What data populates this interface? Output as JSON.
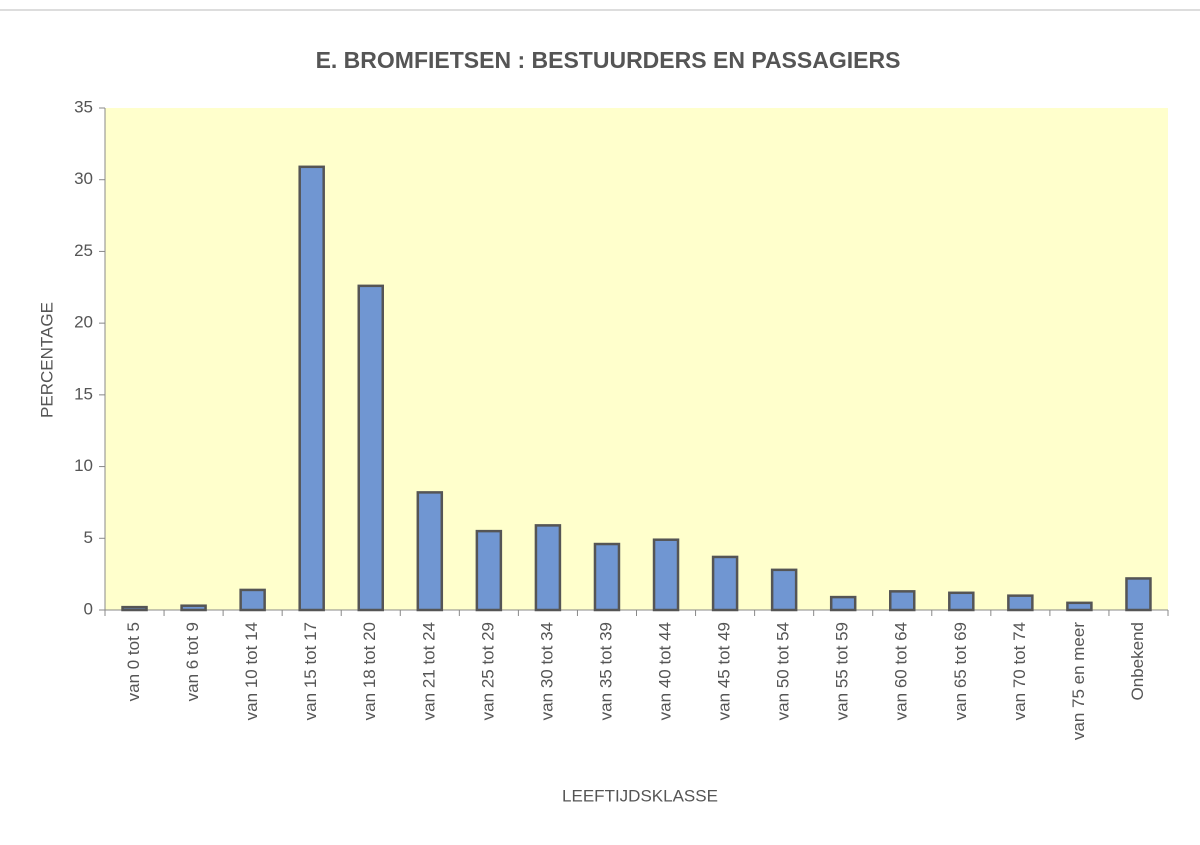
{
  "chart_data": {
    "type": "bar",
    "title": "E. BROMFIETSEN : BESTUURDERS EN PASSAGIERS",
    "xlabel": "LEEFTIJDSKLASSE",
    "ylabel": "PERCENTAGE",
    "categories": [
      "van 0 tot 5",
      "van 6 tot 9",
      "van 10 tot 14",
      "van 15 tot 17",
      "van 18 tot 20",
      "van 21 tot 24",
      "van 25 tot 29",
      "van 30 tot 34",
      "van 35 tot 39",
      "van 40 tot 44",
      "van 45 tot 49",
      "van 50 tot 54",
      "van 55 tot 59",
      "van 60 tot 64",
      "van 65 tot 69",
      "van 70 tot 74",
      "van 75 en meer",
      "Onbekend"
    ],
    "values": [
      0.2,
      0.3,
      1.4,
      30.9,
      22.6,
      8.2,
      5.5,
      5.9,
      4.6,
      4.9,
      3.7,
      2.8,
      0.9,
      1.3,
      1.2,
      1.0,
      0.5,
      2.2
    ],
    "color": "#7096d2",
    "ylim": [
      0,
      35
    ],
    "yticks": [
      0,
      5,
      10,
      15,
      20,
      25,
      30,
      35
    ],
    "grid": false
  }
}
